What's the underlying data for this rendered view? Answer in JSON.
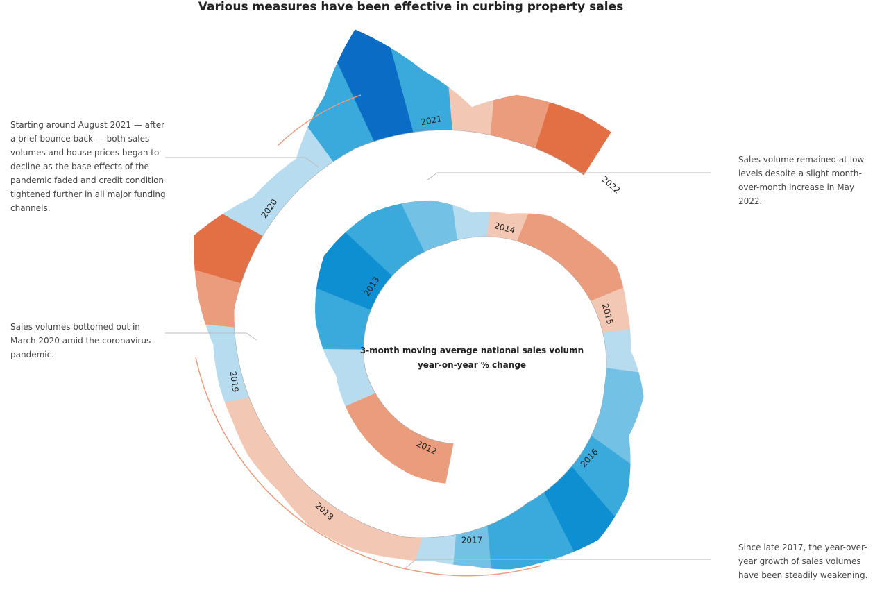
{
  "chart_data": {
    "type": "spiral",
    "title": "Various measures have been effective in curbing property sales",
    "center_label": [
      "3-month moving average national sales volumn",
      "year-on-year % change"
    ],
    "x": [
      2012.5,
      2012.75,
      2013,
      2013.25,
      2013.5,
      2013.75,
      2014,
      2014.25,
      2014.5,
      2014.75,
      2015,
      2015.25,
      2015.5,
      2015.75,
      2016,
      2016.25,
      2016.5,
      2016.75,
      2017,
      2017.25,
      2017.5,
      2017.75,
      2018,
      2018.25,
      2018.5,
      2018.75,
      2019,
      2019.25,
      2019.5,
      2019.75,
      2020,
      2020.25,
      2020.5,
      2020.75,
      2021,
      2021.25,
      2021.5,
      2021.75,
      2022,
      2022.25
    ],
    "values": [
      -20,
      -15,
      10,
      30,
      45,
      40,
      25,
      5,
      -5,
      -15,
      -15,
      -20,
      -10,
      5,
      20,
      15,
      40,
      50,
      40,
      30,
      15,
      5,
      -3,
      -8,
      -10,
      -5,
      -8,
      -5,
      5,
      3,
      -15,
      -40,
      10,
      5,
      40,
      90,
      40,
      -5,
      -25,
      -30
    ],
    "xticks": [
      2012,
      2013,
      2014,
      2015,
      2016,
      2017,
      2018,
      2019,
      2020,
      2021,
      2022
    ],
    "positive_colors": [
      "#b7dcef",
      "#74c1e6",
      "#3aa9dc",
      "#0e8fd2",
      "#0a6cc4"
    ],
    "negative_colors": [
      "#f2c8b5",
      "#eb9c7c",
      "#e36f45"
    ],
    "annotations": [
      "Starting around August 2021 — after a brief bounce back — both sales volumes and house prices began to decline as the base effects of the pandemic faded and credit condition tightened further in all major funding channels.",
      "Sales volumes bottomed out in March 2020 amid the coronavirus pandemic.",
      "Sales volume remained at low levels despite a slight month-over-month increase in May 2022.",
      "Since late 2017, the year-over-year growth of sales volumes have been steadily weakening."
    ]
  }
}
